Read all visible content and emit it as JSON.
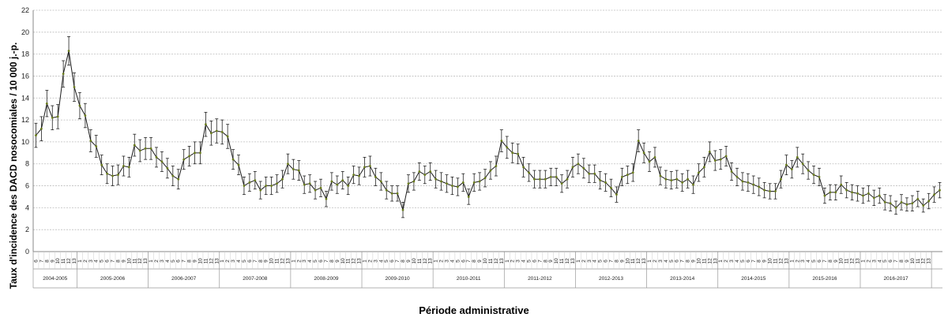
{
  "chart_data": {
    "type": "line",
    "title": "",
    "xlabel": "Période administrative",
    "ylabel": "Taux d'incidence des DACD nosocomiales / 10 000 j.-p.",
    "ylim": [
      0,
      22
    ],
    "yticks": [
      "0",
      "2",
      "4",
      "6",
      "8",
      "10",
      "12",
      "14",
      "16",
      "18",
      "20",
      "22"
    ],
    "grid": true,
    "error_bars": true,
    "line_color": "#1c1c1c",
    "marker_color": "#6b7d1e",
    "periods": [
      "1",
      "2",
      "3",
      "4",
      "5",
      "6",
      "7",
      "8",
      "9",
      "10",
      "11",
      "12",
      "13"
    ],
    "years": [
      {
        "label": "2004-2005",
        "first_period": 6
      },
      {
        "label": "2005-2006",
        "first_period": 1
      },
      {
        "label": "2006-2007",
        "first_period": 1
      },
      {
        "label": "2007-2008",
        "first_period": 1
      },
      {
        "label": "2008-2009",
        "first_period": 1
      },
      {
        "label": "2009-2010",
        "first_period": 1
      },
      {
        "label": "2010-2011",
        "first_period": 1
      },
      {
        "label": "2011-2012",
        "first_period": 1
      },
      {
        "label": "2012-2013",
        "first_period": 1
      },
      {
        "label": "2013-2014",
        "first_period": 1
      },
      {
        "label": "2014-2015",
        "first_period": 1
      },
      {
        "label": "2015-2016",
        "first_period": 1
      },
      {
        "label": "2016-2017",
        "first_period": 1
      }
    ],
    "series": [
      {
        "values": [
          10.6,
          11.2,
          13.5,
          12.2,
          12.3,
          16.2,
          18.3,
          15.0,
          13.3,
          12.4,
          10.1,
          9.6,
          7.9,
          7.1,
          6.9,
          7.0,
          7.8,
          7.7,
          9.7,
          9.2,
          9.4,
          9.4,
          8.6,
          8.2,
          7.6,
          6.9,
          6.6,
          8.4,
          8.7,
          9.0,
          9.0,
          11.6,
          10.8,
          11.0,
          10.9,
          10.5,
          8.4,
          7.9,
          6.0,
          6.3,
          6.5,
          5.6,
          6.0,
          6.0,
          6.2,
          6.6,
          8.0,
          7.5,
          7.4,
          6.1,
          6.2,
          5.6,
          5.8,
          4.8,
          6.4,
          6.1,
          6.5,
          6.0,
          7.0,
          6.9,
          7.7,
          7.8,
          6.8,
          6.4,
          5.6,
          5.3,
          5.3,
          3.8,
          6.2,
          6.4,
          7.3,
          7.0,
          7.3,
          6.6,
          6.4,
          6.2,
          6.0,
          5.9,
          6.3,
          5.0,
          6.3,
          6.4,
          6.7,
          7.4,
          7.8,
          10.1,
          9.5,
          9.0,
          8.9,
          7.7,
          7.2,
          6.6,
          6.6,
          6.6,
          6.8,
          6.8,
          6.2,
          6.6,
          7.7,
          8.0,
          7.6,
          7.1,
          7.1,
          6.5,
          6.3,
          5.8,
          5.2,
          6.8,
          7.0,
          7.2,
          10.1,
          9.0,
          8.2,
          8.6,
          6.9,
          6.6,
          6.5,
          6.6,
          6.3,
          6.6,
          6.1,
          7.2,
          7.7,
          9.1,
          8.3,
          8.4,
          8.7,
          7.3,
          6.8,
          6.4,
          6.3,
          6.1,
          5.9,
          5.6,
          5.5,
          5.5,
          6.6,
          7.9,
          7.5,
          8.6,
          8.0,
          7.4,
          7.0,
          6.8,
          5.1,
          5.4,
          5.4,
          6.1,
          5.6,
          5.4,
          5.3,
          5.1,
          5.3,
          4.9,
          5.1,
          4.5,
          4.4,
          4.0,
          4.5,
          4.3,
          4.4,
          4.8,
          4.2,
          4.6,
          5.2,
          5.6
        ],
        "errors": [
          1.1,
          1.1,
          1.2,
          1.1,
          1.1,
          1.2,
          1.3,
          1.3,
          1.2,
          1.1,
          1.0,
          1.0,
          0.9,
          0.9,
          0.9,
          0.9,
          0.9,
          0.9,
          1.0,
          1.0,
          1.0,
          1.0,
          0.9,
          0.9,
          0.9,
          0.9,
          0.9,
          0.9,
          0.9,
          1.0,
          1.0,
          1.1,
          1.1,
          1.1,
          1.1,
          1.1,
          0.9,
          0.9,
          0.8,
          0.8,
          0.8,
          0.8,
          0.8,
          0.8,
          0.8,
          0.8,
          0.9,
          0.9,
          0.9,
          0.8,
          0.8,
          0.8,
          0.8,
          0.7,
          0.8,
          0.8,
          0.8,
          0.8,
          0.8,
          0.8,
          0.9,
          0.9,
          0.8,
          0.8,
          0.8,
          0.7,
          0.7,
          0.7,
          0.8,
          0.8,
          0.8,
          0.8,
          0.8,
          0.8,
          0.8,
          0.8,
          0.8,
          0.8,
          0.8,
          0.7,
          0.8,
          0.8,
          0.8,
          0.8,
          0.9,
          1.0,
          1.0,
          0.9,
          0.9,
          0.9,
          0.8,
          0.8,
          0.8,
          0.8,
          0.8,
          0.8,
          0.8,
          0.8,
          0.9,
          0.9,
          0.9,
          0.8,
          0.8,
          0.8,
          0.8,
          0.8,
          0.7,
          0.8,
          0.8,
          0.8,
          1.0,
          0.9,
          0.9,
          0.9,
          0.8,
          0.8,
          0.8,
          0.8,
          0.8,
          0.8,
          0.8,
          0.8,
          0.9,
          0.9,
          0.9,
          0.9,
          0.9,
          0.8,
          0.8,
          0.8,
          0.8,
          0.8,
          0.8,
          0.7,
          0.7,
          0.7,
          0.8,
          0.9,
          0.8,
          0.9,
          0.9,
          0.8,
          0.8,
          0.8,
          0.7,
          0.7,
          0.7,
          0.8,
          0.7,
          0.7,
          0.7,
          0.7,
          0.7,
          0.7,
          0.7,
          0.7,
          0.7,
          0.6,
          0.7,
          0.6,
          0.7,
          0.7,
          0.6,
          0.7,
          0.7,
          0.7
        ]
      }
    ]
  }
}
